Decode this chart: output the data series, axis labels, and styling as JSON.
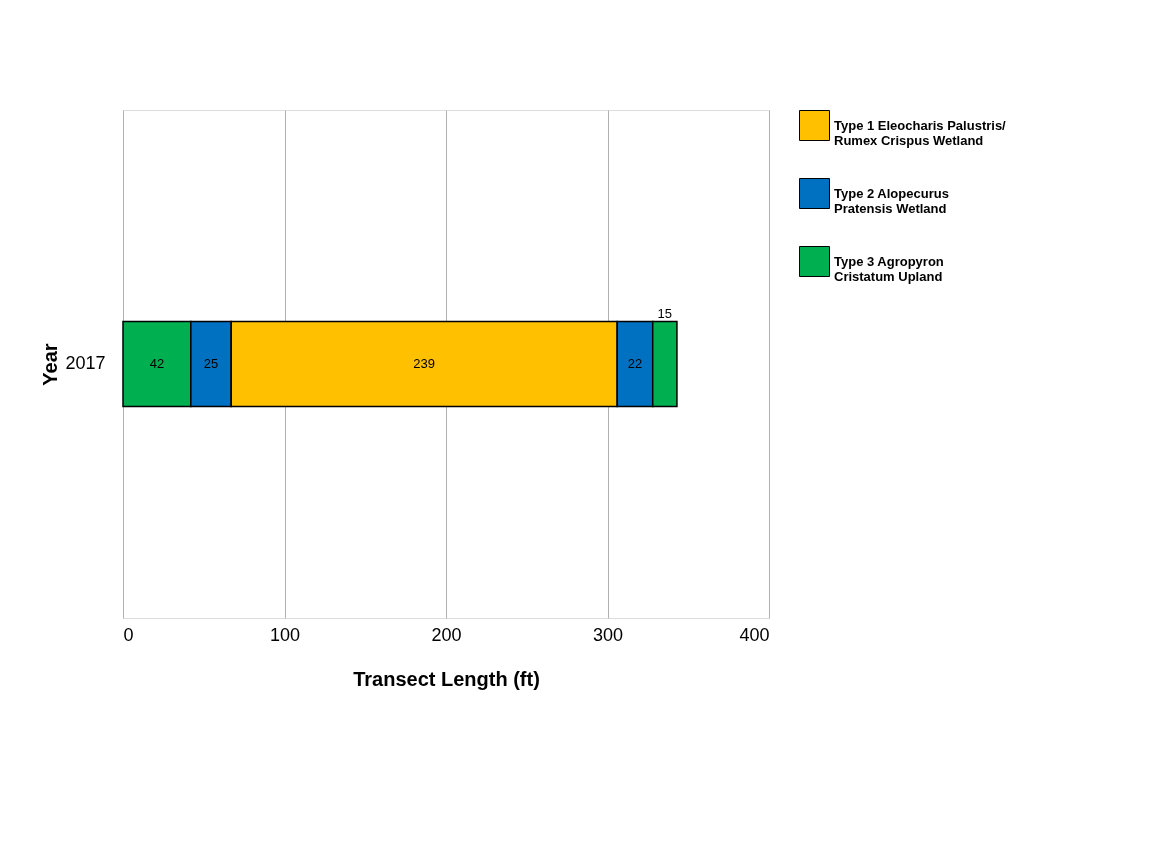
{
  "chart_data": {
    "type": "bar",
    "orientation": "horizontal",
    "stacked": true,
    "xlabel": "Transect Length (ft)",
    "ylabel": "Year",
    "categories": [
      "2017"
    ],
    "series": [
      {
        "name": "Type 3 Agropyron\nCristatum Upland",
        "color": "#00b050",
        "values": [
          42
        ]
      },
      {
        "name": "Type 2 Alopecurus\nPratensis Wetland",
        "color": "#0070c0",
        "values": [
          25
        ]
      },
      {
        "name": "Type 1 Eleocharis Palustris/\nRumex Crispus Wetland",
        "color": "#ffc000",
        "values": [
          239
        ]
      },
      {
        "color": "#0070c0",
        "values": [
          22
        ]
      },
      {
        "color": "#00b050",
        "values": [
          15
        ]
      }
    ],
    "xlim": [
      0,
      400
    ],
    "xticks": [
      0,
      100,
      200,
      300,
      400
    ],
    "grid": "x",
    "legend": "right",
    "data_labels": true
  }
}
